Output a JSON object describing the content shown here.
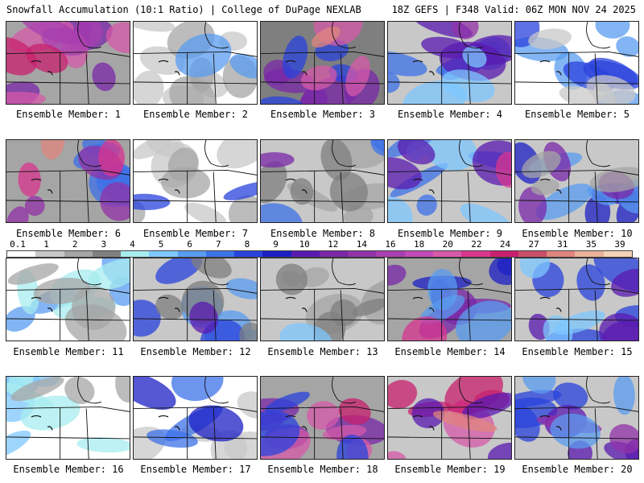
{
  "header": {
    "title": "Snowfall Accumulation (10:1 Ratio) | College of DuPage NEXLAB",
    "run_info": "18Z GEFS | F348 Valid: 06Z MON NOV 24 2025"
  },
  "legend": {
    "ticks": [
      "0.1",
      "1",
      "2",
      "3",
      "4",
      "5",
      "6",
      "7",
      "8",
      "9",
      "10",
      "12",
      "14",
      "16",
      "18",
      "20",
      "22",
      "24",
      "27",
      "31",
      "35",
      "39"
    ],
    "colors": [
      "#ffffff",
      "#c8c8c8",
      "#a5a5a5",
      "#7f7f7f",
      "#a7ecef",
      "#7ec7ff",
      "#5a9cf0",
      "#3d72e8",
      "#2a43dc",
      "#1c1fc4",
      "#5a1ab0",
      "#7a27a8",
      "#9132a8",
      "#a83fb0",
      "#c44aba",
      "#d65aa8",
      "#d8368f",
      "#c8206e",
      "#c94f6a",
      "#e0857e",
      "#eab09a",
      "#f3d2b6"
    ]
  },
  "members": [
    {
      "label": "Ensemble Member: 1"
    },
    {
      "label": "Ensemble Member: 2"
    },
    {
      "label": "Ensemble Member: 3"
    },
    {
      "label": "Ensemble Member: 4"
    },
    {
      "label": "Ensemble Member: 5"
    },
    {
      "label": "Ensemble Member: 6"
    },
    {
      "label": "Ensemble Member: 7"
    },
    {
      "label": "Ensemble Member: 8"
    },
    {
      "label": "Ensemble Member: 9"
    },
    {
      "label": "Ensemble Member: 10"
    },
    {
      "label": "Ensemble Member: 11"
    },
    {
      "label": "Ensemble Member: 12"
    },
    {
      "label": "Ensemble Member: 13"
    },
    {
      "label": "Ensemble Member: 14"
    },
    {
      "label": "Ensemble Member: 15"
    },
    {
      "label": "Ensemble Member: 16"
    },
    {
      "label": "Ensemble Member: 17"
    },
    {
      "label": "Ensemble Member: 18"
    },
    {
      "label": "Ensemble Member: 19"
    },
    {
      "label": "Ensemble Member: 20"
    }
  ]
}
